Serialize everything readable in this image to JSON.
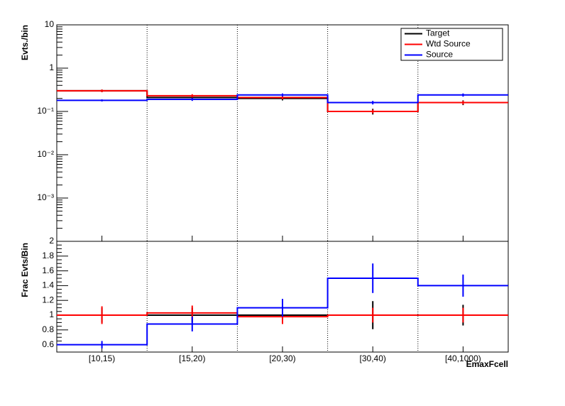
{
  "chart_data": [
    {
      "type": "step",
      "y_label": "Evts./bin",
      "log_y": true,
      "legend": "top-right",
      "grid_x": true,
      "categories": [
        "[10,15)",
        "[15,20)",
        "[20,30)",
        "[30,40)",
        "[40,1000)"
      ],
      "ylim": [
        0.0001,
        10
      ],
      "yticks": [
        {
          "value": 0.001,
          "label": "10⁻³"
        },
        {
          "value": 0.01,
          "label": "10⁻²"
        },
        {
          "value": 0.1,
          "label": "10⁻¹"
        },
        1,
        10
      ],
      "series": [
        {
          "name": "Target",
          "color": "#000000",
          "values": [
            0.3,
            0.21,
            0.2,
            0.1,
            0.16
          ],
          "errors": [
            0.02,
            0.02,
            0.02,
            0.015,
            0.02
          ]
        },
        {
          "name": "Wtd Source",
          "color": "#ff0000",
          "values": [
            0.3,
            0.23,
            0.21,
            0.1,
            0.16
          ],
          "errors": [
            0.02,
            0.02,
            0.02,
            0.01,
            0.015
          ]
        },
        {
          "name": "Source",
          "color": "#0000ff",
          "values": [
            0.18,
            0.19,
            0.24,
            0.16,
            0.24
          ],
          "errors": [
            0.01,
            0.015,
            0.02,
            0.015,
            0.02
          ]
        }
      ]
    },
    {
      "type": "step",
      "y_label": "Frac Evts/Bin",
      "x_label": "EmaxFcell",
      "grid_x": true,
      "categories": [
        "[10,15)",
        "[15,20)",
        "[20,30)",
        "[30,40)",
        "[40,1000)"
      ],
      "ylim": [
        0.5,
        2
      ],
      "yticks": [
        0.6,
        0.8,
        1,
        1.2,
        1.4,
        1.6,
        1.8,
        2
      ],
      "series": [
        {
          "name": "Target",
          "color": "#000000",
          "values": [
            1,
            1,
            1,
            1,
            1
          ],
          "errors": [
            0.1,
            0.1,
            0.1,
            0.19,
            0.14
          ]
        },
        {
          "name": "Wtd Source",
          "color": "#ff0000",
          "values": [
            1,
            1.03,
            0.98,
            1,
            1
          ],
          "errors": [
            0.12,
            0.1,
            0.1,
            0.1,
            0.1
          ]
        },
        {
          "name": "Source",
          "color": "#0000ff",
          "values": [
            0.6,
            0.88,
            1.1,
            1.5,
            1.4
          ],
          "errors": [
            0.05,
            0.1,
            0.12,
            0.2,
            0.15
          ]
        }
      ]
    }
  ]
}
